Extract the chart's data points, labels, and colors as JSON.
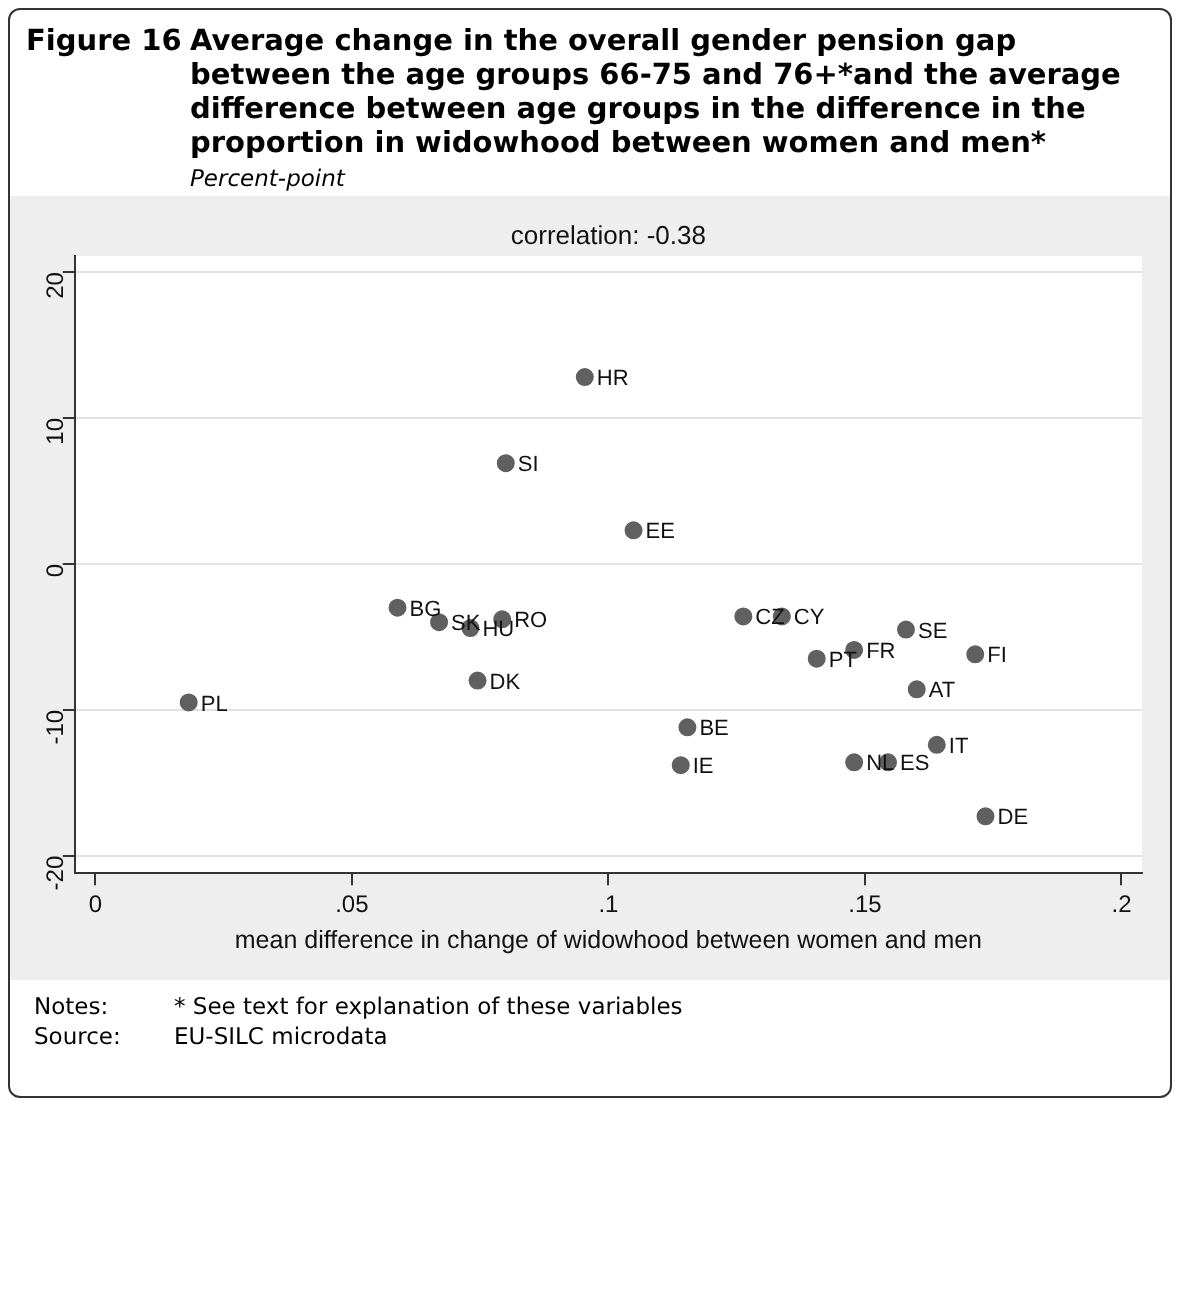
{
  "chart_data": {
    "type": "scatter",
    "title": "Figure 16\tAverage change in the overall gender pension gap between the age groups 66-75 and 76+*and the average difference between age groups in the difference in the proportion in widowhood between women and men*",
    "subtitle": "Percent-point",
    "xlabel": "mean difference in change of widowhood between women and men",
    "x": [
      0.0589,
      0.067,
      0.0731,
      0.0793,
      0.0745,
      0.0182,
      0.1263,
      0.1338,
      0.158,
      0.1479,
      0.1406,
      0.1715,
      0.1601,
      0.1154,
      0.164,
      0.1141,
      0.1479,
      0.1545,
      0.1735,
      0.0954,
      0.08,
      0.1049
    ],
    "series": [
      {
        "color": "#606060",
        "values": [
          -3.0,
          -4.0,
          -4.4,
          -3.8,
          -8.0,
          -9.5,
          -3.6,
          -3.6,
          -4.5,
          -5.9,
          -6.5,
          -6.2,
          -8.6,
          -11.2,
          -12.4,
          -13.8,
          -13.6,
          -13.6,
          -17.3,
          12.8,
          6.9,
          2.3
        ]
      }
    ],
    "xlim": [
      -0.004,
      0.204
    ],
    "ylim": [
      -21.2,
      21.1
    ],
    "xticks": [
      0,
      {
        "value": 0.05,
        "label": ".05"
      },
      {
        "value": 0.1,
        "label": ".1"
      },
      {
        "value": 0.15,
        "label": ".15"
      },
      {
        "value": 0.2,
        "label": ".2"
      }
    ],
    "yticks": [
      -20,
      -10,
      0,
      10,
      20
    ],
    "grid": "y",
    "legend": false,
    "marker": "circle",
    "annotations": [
      "correlation: -0.38",
      {
        "text": "BG",
        "x": 0.0589,
        "y": -3.0
      },
      {
        "text": "SK",
        "x": 0.067,
        "y": -4.0
      },
      {
        "text": "HU",
        "x": 0.0731,
        "y": -4.4
      },
      {
        "text": "RO",
        "x": 0.0793,
        "y": -3.8
      },
      {
        "text": "DK",
        "x": 0.0745,
        "y": -8.0
      },
      {
        "text": "PL",
        "x": 0.0182,
        "y": -9.5
      },
      {
        "text": "CZ",
        "x": 0.1263,
        "y": -3.6
      },
      {
        "text": "CY",
        "x": 0.1338,
        "y": -3.6
      },
      {
        "text": "SE",
        "x": 0.158,
        "y": -4.5
      },
      {
        "text": "FR",
        "x": 0.1479,
        "y": -5.9
      },
      {
        "text": "PT",
        "x": 0.1406,
        "y": -6.5
      },
      {
        "text": "FI",
        "x": 0.1715,
        "y": -6.2
      },
      {
        "text": "AT",
        "x": 0.1601,
        "y": -8.6
      },
      {
        "text": "BE",
        "x": 0.1154,
        "y": -11.2
      },
      {
        "text": "IT",
        "x": 0.164,
        "y": -12.4
      },
      {
        "text": "IE",
        "x": 0.1141,
        "y": -13.8
      },
      {
        "text": "NL",
        "x": 0.1479,
        "y": -13.6
      },
      {
        "text": "ES",
        "x": 0.1545,
        "y": -13.6
      },
      {
        "text": "DE",
        "x": 0.1735,
        "y": -17.3
      },
      {
        "text": "HR",
        "x": 0.0954,
        "y": 12.8
      },
      {
        "text": "SI",
        "x": 0.08,
        "y": 6.9
      },
      {
        "text": "EE",
        "x": 0.1049,
        "y": 2.3
      },
      "Notes:\t* See text for explanation of these variables",
      "Source:\tEU-SILC microdata"
    ]
  }
}
